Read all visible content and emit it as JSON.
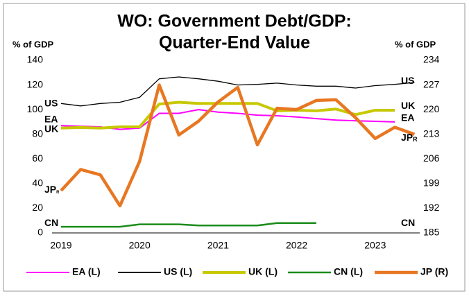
{
  "chart_data": {
    "type": "line",
    "title": [
      "WO: Government Debt/GDP:",
      "Quarter-End Value"
    ],
    "ylabel": "% of GDP",
    "y2label": "% of GDP",
    "categories": [
      "2019",
      null,
      null,
      null,
      "2020",
      null,
      null,
      null,
      "2021",
      null,
      null,
      null,
      "2022",
      null,
      null,
      null,
      "2023",
      null,
      null
    ],
    "ylim": [
      0,
      140
    ],
    "yticks": [
      0,
      20,
      40,
      60,
      80,
      100,
      120,
      140
    ],
    "y2lim": [
      185,
      234
    ],
    "y2ticks": [
      185,
      192,
      199,
      206,
      213,
      220,
      227,
      234
    ],
    "series": [
      {
        "name": "EA (L)",
        "color": "#ff00ff",
        "width": 2,
        "values": [
          87,
          86.5,
          86,
          84,
          85,
          97,
          97,
          100,
          98,
          97,
          95.5,
          95,
          94,
          92.7,
          91.5,
          91,
          90.5,
          90,
          null
        ]
      },
      {
        "name": "US (L)",
        "color": "#000000",
        "width": 1.3,
        "values": [
          105,
          103,
          105,
          106,
          110,
          125,
          126.5,
          125,
          123,
          120,
          120.5,
          121.5,
          120,
          119,
          119,
          117.5,
          119.5,
          120.5,
          122
        ]
      },
      {
        "name": "UK (L)",
        "color": "#c8c800",
        "width": 4,
        "values": [
          85,
          85.5,
          85,
          86,
          86,
          104.5,
          106,
          105,
          105,
          105,
          105,
          99,
          99.5,
          99,
          100.5,
          96,
          99.5,
          99.5,
          null
        ]
      },
      {
        "name": "CN (L)",
        "color": "#1a8c1a",
        "width": 2.5,
        "values": [
          5,
          5,
          5,
          5,
          7,
          7,
          7,
          6,
          6,
          6,
          6,
          8,
          8,
          8,
          null,
          null,
          null,
          null,
          null
        ]
      },
      {
        "name": "JP (R)",
        "color": "#e87722",
        "width": 4.5,
        "axis": "y2",
        "values": [
          197,
          203,
          201.5,
          192.7,
          205.3,
          227,
          212.8,
          216.7,
          222.2,
          226.3,
          210,
          220.4,
          220,
          222.6,
          222.8,
          217.7,
          211.8,
          215,
          213
        ]
      }
    ],
    "annotations_left": [
      {
        "text": "US",
        "color": "#000000",
        "y": 105
      },
      {
        "text": "EA",
        "color": "#ff00ff",
        "y": 92
      },
      {
        "text": "UK",
        "color": "#c8c800",
        "y": 84
      },
      {
        "text": "JP",
        "sub": "R",
        "color": "#e87722",
        "y": 35
      },
      {
        "text": "CN",
        "color": "#1a8c1a",
        "y": 8
      }
    ],
    "annotations_right": [
      {
        "text": "US",
        "color": "#000000",
        "y": 123
      },
      {
        "text": "UK",
        "color": "#c8c800",
        "y": 103
      },
      {
        "text": "EA",
        "color": "#ff00ff",
        "y": 93
      },
      {
        "text": "JP",
        "sub": "R",
        "color": "#e87722",
        "y": 77
      },
      {
        "text": "CN",
        "color": "#1a8c1a",
        "y": 8
      }
    ]
  }
}
